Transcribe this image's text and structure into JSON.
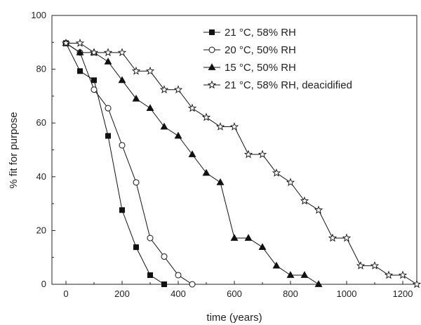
{
  "chart_data": {
    "type": "line",
    "title": "",
    "xlabel": "time (years)",
    "ylabel": "% fit for purpose",
    "xlim": [
      -50,
      1250
    ],
    "ylim": [
      0,
      100
    ],
    "xticks": [
      0,
      200,
      400,
      600,
      800,
      1000,
      1200
    ],
    "yticks": [
      0,
      20,
      40,
      60,
      80,
      100
    ],
    "grid": false,
    "legend_position": "top-right",
    "series": [
      {
        "name": "21 °C, 58% RH",
        "marker": "square-filled",
        "x": [
          0,
          50,
          100,
          150,
          200,
          250,
          300,
          350
        ],
        "y": [
          89.7,
          79.3,
          75.9,
          55.2,
          27.6,
          13.8,
          3.4,
          0
        ]
      },
      {
        "name": "20 °C, 50% RH",
        "marker": "circle-open",
        "x": [
          0,
          50,
          100,
          150,
          200,
          250,
          300,
          350,
          400,
          450
        ],
        "y": [
          89.7,
          86.2,
          72.4,
          65.5,
          51.7,
          37.9,
          17.2,
          10.3,
          3.4,
          0
        ]
      },
      {
        "name": "15 °C, 50% RH",
        "marker": "triangle-filled",
        "x": [
          0,
          50,
          100,
          150,
          200,
          250,
          300,
          350,
          400,
          450,
          500,
          550,
          600,
          650,
          700,
          750,
          800,
          850,
          900
        ],
        "y": [
          89.7,
          86.2,
          86.2,
          82.8,
          75.9,
          69.0,
          65.5,
          58.6,
          55.2,
          48.3,
          41.4,
          37.9,
          17.2,
          17.2,
          13.8,
          6.9,
          3.4,
          3.4,
          0
        ]
      },
      {
        "name": "21 °C, 58% RH, deacidified",
        "marker": "star-open",
        "x": [
          0,
          50,
          100,
          150,
          200,
          250,
          300,
          350,
          400,
          450,
          500,
          550,
          600,
          650,
          700,
          750,
          800,
          850,
          900,
          950,
          1000,
          1050,
          1100,
          1150,
          1200,
          1250
        ],
        "y": [
          89.7,
          89.7,
          86.2,
          86.2,
          86.2,
          79.3,
          79.3,
          72.4,
          72.4,
          65.5,
          62.1,
          58.6,
          58.6,
          48.3,
          48.3,
          41.4,
          37.9,
          31.0,
          27.6,
          17.2,
          17.2,
          6.9,
          6.9,
          3.4,
          3.4,
          0
        ]
      }
    ]
  }
}
